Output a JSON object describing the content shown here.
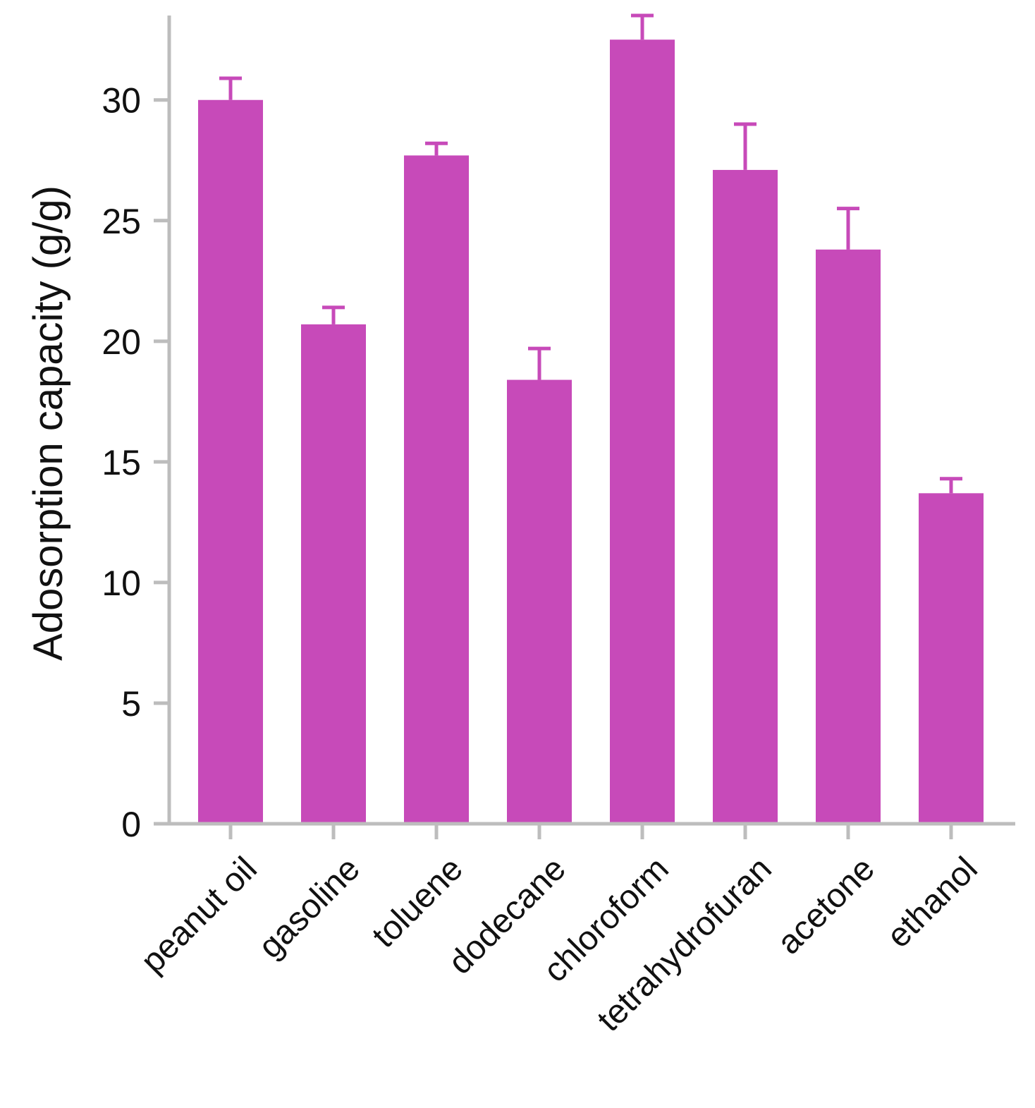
{
  "chart_data": {
    "type": "bar",
    "title": "",
    "xlabel": "",
    "ylabel": "Adosorption capacity (g/g)",
    "ylim": [
      0,
      33.5
    ],
    "yticks": [
      0,
      5,
      10,
      15,
      20,
      25,
      30
    ],
    "grid": false,
    "bar_color": "#c74ab9",
    "axis_color": "#bdbdbd",
    "categories": [
      "peanut oil",
      "gasoline",
      "toluene",
      "dodecane",
      "chloroform",
      "tetrahydrofuran",
      "acetone",
      "ethanol"
    ],
    "values": [
      30.0,
      20.7,
      27.7,
      18.4,
      32.5,
      27.1,
      23.8,
      13.7
    ],
    "errors": [
      0.9,
      0.7,
      0.5,
      1.3,
      1.0,
      1.9,
      1.7,
      0.6
    ]
  }
}
